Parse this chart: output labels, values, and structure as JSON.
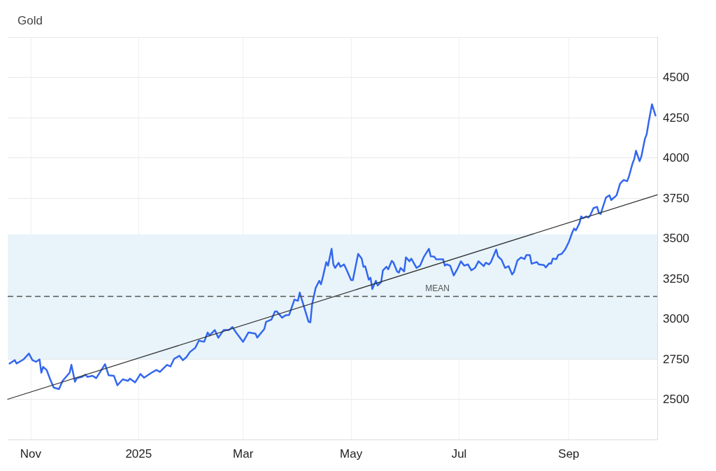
{
  "chart_data": {
    "type": "line",
    "title": "Gold",
    "xlim": [
      "2024-10-19",
      "2025-10-21"
    ],
    "xticks": [
      {
        "value": "2024-11-01",
        "label": "Nov"
      },
      {
        "value": "2025-01-01",
        "label": "2025"
      },
      {
        "value": "2025-03-01",
        "label": "Mar"
      },
      {
        "value": "2025-05-01",
        "label": "May"
      },
      {
        "value": "2025-07-01",
        "label": "Jul"
      },
      {
        "value": "2025-09-01",
        "label": "Sep"
      }
    ],
    "ylim": [
      2250,
      4750
    ],
    "yticks": [
      2500,
      2750,
      3000,
      3250,
      3500,
      3750,
      4000,
      4250,
      4500
    ],
    "grid": true,
    "marker": "none",
    "line_style": "solid",
    "series": [
      {
        "color": "#3367ee",
        "x": [
          "2024-10-20",
          "2024-10-23",
          "2024-10-24",
          "2024-10-28",
          "2024-10-31",
          "2024-11-02",
          "2024-11-04",
          "2024-11-06",
          "2024-11-07",
          "2024-11-08",
          "2024-11-10",
          "2024-11-12",
          "2024-11-14",
          "2024-11-17",
          "2024-11-19",
          "2024-11-23",
          "2024-11-24",
          "2024-11-26",
          "2024-11-27",
          "2024-11-30",
          "2024-12-02",
          "2024-12-03",
          "2024-12-06",
          "2024-12-08",
          "2024-12-13",
          "2024-12-15",
          "2024-12-18",
          "2024-12-20",
          "2024-12-23",
          "2024-12-26",
          "2024-12-27",
          "2024-12-30",
          "2025-01-02",
          "2025-01-04",
          "2025-01-08",
          "2025-01-11",
          "2025-01-13",
          "2025-01-17",
          "2025-01-19",
          "2025-01-21",
          "2025-01-24",
          "2025-01-26",
          "2025-01-28",
          "2025-01-30",
          "2025-02-02",
          "2025-02-04",
          "2025-02-07",
          "2025-02-09",
          "2025-02-10",
          "2025-02-13",
          "2025-02-15",
          "2025-02-18",
          "2025-02-21",
          "2025-02-23",
          "2025-02-25",
          "2025-03-01",
          "2025-03-04",
          "2025-03-08",
          "2025-03-09",
          "2025-03-13",
          "2025-03-14",
          "2025-03-17",
          "2025-03-19",
          "2025-03-20",
          "2025-03-23",
          "2025-03-25",
          "2025-03-27",
          "2025-03-30",
          "2025-04-01",
          "2025-04-02",
          "2025-04-04",
          "2025-04-07",
          "2025-04-08",
          "2025-04-09",
          "2025-04-11",
          "2025-04-13",
          "2025-04-14",
          "2025-04-15",
          "2025-04-17",
          "2025-04-18",
          "2025-04-20",
          "2025-04-21",
          "2025-04-22",
          "2025-04-24",
          "2025-04-25",
          "2025-04-27",
          "2025-04-28",
          "2025-05-01",
          "2025-05-02",
          "2025-05-05",
          "2025-05-07",
          "2025-05-08",
          "2025-05-09",
          "2025-05-11",
          "2025-05-12",
          "2025-05-13",
          "2025-05-15",
          "2025-05-16",
          "2025-05-18",
          "2025-05-19",
          "2025-05-21",
          "2025-05-22",
          "2025-05-24",
          "2025-05-25",
          "2025-05-27",
          "2025-05-28",
          "2025-05-29",
          "2025-05-31",
          "2025-06-01",
          "2025-06-03",
          "2025-06-04",
          "2025-06-07",
          "2025-06-09",
          "2025-06-11",
          "2025-06-14",
          "2025-06-15",
          "2025-06-17",
          "2025-06-18",
          "2025-06-22",
          "2025-06-23",
          "2025-06-24",
          "2025-06-26",
          "2025-06-28",
          "2025-06-30",
          "2025-07-02",
          "2025-07-04",
          "2025-07-06",
          "2025-07-08",
          "2025-07-10",
          "2025-07-12",
          "2025-07-15",
          "2025-07-16",
          "2025-07-18",
          "2025-07-19",
          "2025-07-22",
          "2025-07-23",
          "2025-07-25",
          "2025-07-27",
          "2025-07-29",
          "2025-07-31",
          "2025-08-01",
          "2025-08-03",
          "2025-08-05",
          "2025-08-07",
          "2025-08-08",
          "2025-08-10",
          "2025-08-11",
          "2025-08-14",
          "2025-08-15",
          "2025-08-18",
          "2025-08-19",
          "2025-08-21",
          "2025-08-22",
          "2025-08-23",
          "2025-08-25",
          "2025-08-26",
          "2025-08-28",
          "2025-08-30",
          "2025-09-01",
          "2025-09-03",
          "2025-09-04",
          "2025-09-05",
          "2025-09-07",
          "2025-09-08",
          "2025-09-09",
          "2025-09-11",
          "2025-09-12",
          "2025-09-13",
          "2025-09-15",
          "2025-09-17",
          "2025-09-18",
          "2025-09-19",
          "2025-09-22",
          "2025-09-24",
          "2025-09-25",
          "2025-09-28",
          "2025-09-30",
          "2025-10-02",
          "2025-10-04",
          "2025-10-05",
          "2025-10-07",
          "2025-10-08",
          "2025-10-09",
          "2025-10-11",
          "2025-10-12",
          "2025-10-14",
          "2025-10-15",
          "2025-10-16",
          "2025-10-18",
          "2025-10-20"
        ],
        "values": [
          2722,
          2743,
          2722,
          2748,
          2784,
          2743,
          2733,
          2748,
          2665,
          2701,
          2682,
          2624,
          2573,
          2563,
          2614,
          2665,
          2714,
          2609,
          2631,
          2639,
          2653,
          2639,
          2646,
          2631,
          2718,
          2649,
          2646,
          2587,
          2624,
          2614,
          2628,
          2605,
          2657,
          2634,
          2663,
          2682,
          2670,
          2714,
          2704,
          2751,
          2770,
          2743,
          2762,
          2794,
          2820,
          2864,
          2857,
          2915,
          2896,
          2930,
          2882,
          2930,
          2930,
          2949,
          2915,
          2857,
          2915,
          2908,
          2883,
          2937,
          2981,
          2995,
          3046,
          3046,
          3007,
          3022,
          3024,
          3119,
          3112,
          3163,
          3090,
          2981,
          2978,
          3090,
          3192,
          3236,
          3214,
          3257,
          3352,
          3330,
          3435,
          3338,
          3316,
          3348,
          3323,
          3338,
          3316,
          3240,
          3240,
          3403,
          3374,
          3323,
          3326,
          3243,
          3255,
          3185,
          3236,
          3207,
          3228,
          3301,
          3323,
          3308,
          3360,
          3348,
          3294,
          3287,
          3316,
          3294,
          3382,
          3357,
          3374,
          3316,
          3330,
          3382,
          3435,
          3388,
          3386,
          3370,
          3370,
          3330,
          3338,
          3330,
          3269,
          3308,
          3357,
          3330,
          3338,
          3301,
          3316,
          3357,
          3327,
          3348,
          3338,
          3352,
          3430,
          3388,
          3367,
          3316,
          3327,
          3275,
          3290,
          3362,
          3381,
          3371,
          3396,
          3396,
          3342,
          3352,
          3338,
          3334,
          3319,
          3345,
          3342,
          3374,
          3371,
          3396,
          3403,
          3432,
          3476,
          3537,
          3561,
          3549,
          3593,
          3636,
          3625,
          3636,
          3629,
          3640,
          3688,
          3695,
          3658,
          3651,
          3753,
          3767,
          3738,
          3767,
          3840,
          3862,
          3855,
          3884,
          3964,
          3993,
          4044,
          3979,
          4008,
          4117,
          4146,
          4212,
          4333,
          4263
        ]
      },
      {
        "color": "#333333",
        "x": [
          "2024-10-19",
          "2025-10-21"
        ],
        "values": [
          2500,
          3770
        ]
      }
    ],
    "ref_lines": [
      {
        "axis": "y",
        "value": 3140,
        "label": "MEAN",
        "color": "#555555",
        "line_style": "dashed"
      }
    ],
    "bands": [
      {
        "axis": "y",
        "from": 2750,
        "to": 3525,
        "color": "#e8f4fa"
      }
    ]
  }
}
